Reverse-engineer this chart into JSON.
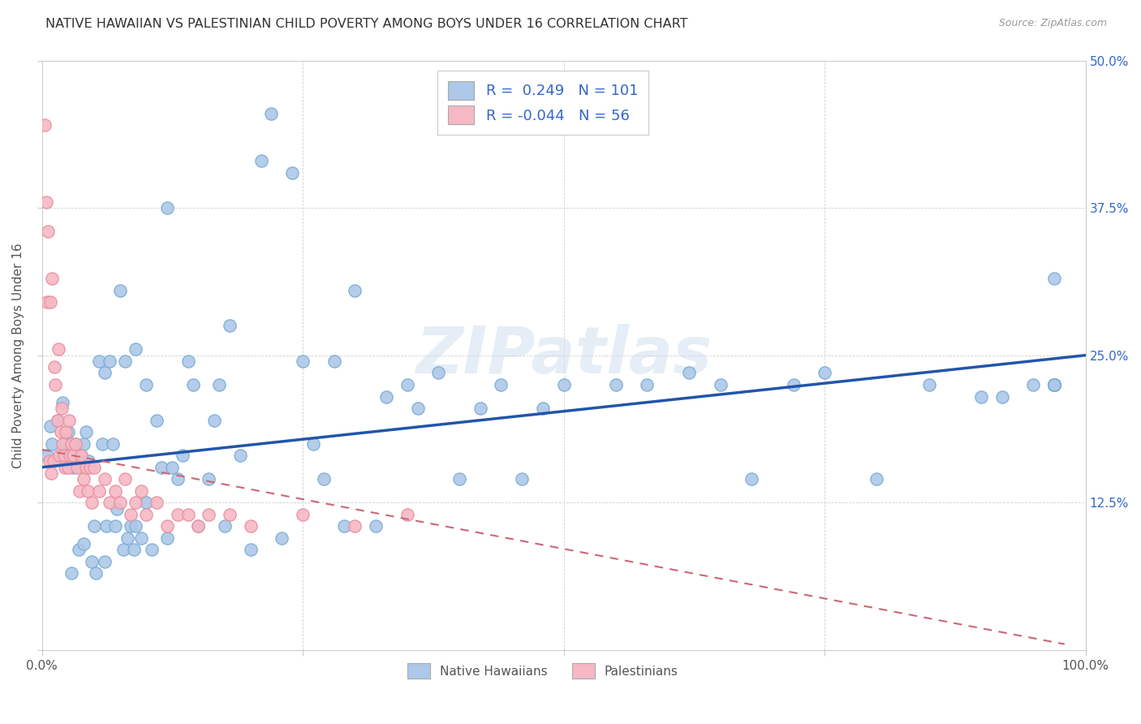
{
  "title": "NATIVE HAWAIIAN VS PALESTINIAN CHILD POVERTY AMONG BOYS UNDER 16 CORRELATION CHART",
  "source": "Source: ZipAtlas.com",
  "ylabel": "Child Poverty Among Boys Under 16",
  "xlim": [
    0,
    1.0
  ],
  "ylim": [
    0,
    0.5
  ],
  "legend_r_native": "0.249",
  "legend_n_native": "101",
  "legend_r_palestinian": "-0.044",
  "legend_n_palestinian": "56",
  "native_color": "#adc8e8",
  "native_edge_color": "#7aaed4",
  "palestinian_color": "#f5b8c4",
  "palestinian_edge_color": "#e890a0",
  "native_line_color": "#2255aa",
  "palestinian_line_color": "#cc6677",
  "legend_value_color": "#3366cc",
  "background_color": "#ffffff",
  "watermark": "ZIPatlas",
  "nh_x": [
    0.005,
    0.008,
    0.01,
    0.015,
    0.02,
    0.022,
    0.025,
    0.025,
    0.028,
    0.03,
    0.03,
    0.032,
    0.035,
    0.038,
    0.04,
    0.04,
    0.042,
    0.045,
    0.048,
    0.05,
    0.052,
    0.055,
    0.058,
    0.06,
    0.06,
    0.062,
    0.065,
    0.068,
    0.07,
    0.072,
    0.075,
    0.078,
    0.08,
    0.082,
    0.085,
    0.088,
    0.09,
    0.09,
    0.095,
    0.1,
    0.1,
    0.105,
    0.11,
    0.115,
    0.12,
    0.12,
    0.125,
    0.13,
    0.135,
    0.14,
    0.145,
    0.15,
    0.16,
    0.165,
    0.17,
    0.175,
    0.18,
    0.19,
    0.2,
    0.21,
    0.22,
    0.23,
    0.24,
    0.25,
    0.26,
    0.27,
    0.28,
    0.29,
    0.3,
    0.32,
    0.33,
    0.35,
    0.36,
    0.38,
    0.4,
    0.42,
    0.44,
    0.46,
    0.48,
    0.5,
    0.55,
    0.58,
    0.62,
    0.65,
    0.68,
    0.72,
    0.75,
    0.8,
    0.85,
    0.9,
    0.92,
    0.95,
    0.97,
    0.97,
    0.97,
    0.97,
    0.97,
    0.97,
    0.97,
    0.97,
    0.97
  ],
  "nh_y": [
    0.165,
    0.19,
    0.175,
    0.195,
    0.21,
    0.175,
    0.17,
    0.185,
    0.065,
    0.155,
    0.165,
    0.175,
    0.085,
    0.165,
    0.175,
    0.09,
    0.185,
    0.16,
    0.075,
    0.105,
    0.065,
    0.245,
    0.175,
    0.235,
    0.075,
    0.105,
    0.245,
    0.175,
    0.105,
    0.12,
    0.305,
    0.085,
    0.245,
    0.095,
    0.105,
    0.085,
    0.255,
    0.105,
    0.095,
    0.125,
    0.225,
    0.085,
    0.195,
    0.155,
    0.375,
    0.095,
    0.155,
    0.145,
    0.165,
    0.245,
    0.225,
    0.105,
    0.145,
    0.195,
    0.225,
    0.105,
    0.275,
    0.165,
    0.085,
    0.415,
    0.455,
    0.095,
    0.405,
    0.245,
    0.175,
    0.145,
    0.245,
    0.105,
    0.305,
    0.105,
    0.215,
    0.225,
    0.205,
    0.235,
    0.145,
    0.205,
    0.225,
    0.145,
    0.205,
    0.225,
    0.225,
    0.225,
    0.235,
    0.225,
    0.145,
    0.225,
    0.235,
    0.145,
    0.225,
    0.215,
    0.215,
    0.225,
    0.225,
    0.225,
    0.225,
    0.225,
    0.225,
    0.225,
    0.225,
    0.225,
    0.315
  ],
  "pal_x": [
    0.003,
    0.004,
    0.005,
    0.006,
    0.007,
    0.008,
    0.009,
    0.01,
    0.011,
    0.012,
    0.013,
    0.015,
    0.016,
    0.017,
    0.018,
    0.019,
    0.02,
    0.021,
    0.022,
    0.023,
    0.025,
    0.026,
    0.027,
    0.028,
    0.03,
    0.032,
    0.034,
    0.036,
    0.038,
    0.04,
    0.042,
    0.044,
    0.046,
    0.048,
    0.05,
    0.055,
    0.06,
    0.065,
    0.07,
    0.075,
    0.08,
    0.085,
    0.09,
    0.095,
    0.1,
    0.11,
    0.12,
    0.13,
    0.14,
    0.15,
    0.16,
    0.18,
    0.2,
    0.25,
    0.3,
    0.35
  ],
  "pal_y": [
    0.445,
    0.38,
    0.295,
    0.355,
    0.16,
    0.295,
    0.15,
    0.315,
    0.16,
    0.24,
    0.225,
    0.195,
    0.255,
    0.165,
    0.185,
    0.205,
    0.175,
    0.165,
    0.155,
    0.185,
    0.155,
    0.195,
    0.165,
    0.175,
    0.165,
    0.175,
    0.155,
    0.135,
    0.165,
    0.145,
    0.155,
    0.135,
    0.155,
    0.125,
    0.155,
    0.135,
    0.145,
    0.125,
    0.135,
    0.125,
    0.145,
    0.115,
    0.125,
    0.135,
    0.115,
    0.125,
    0.105,
    0.115,
    0.115,
    0.105,
    0.115,
    0.115,
    0.105,
    0.115,
    0.105,
    0.115
  ],
  "nh_line_x0": 0.0,
  "nh_line_x1": 1.0,
  "nh_line_y0": 0.155,
  "nh_line_y1": 0.25,
  "pal_line_x0": 0.0,
  "pal_line_x1": 0.98,
  "pal_line_y0": 0.17,
  "pal_line_y1": 0.005
}
